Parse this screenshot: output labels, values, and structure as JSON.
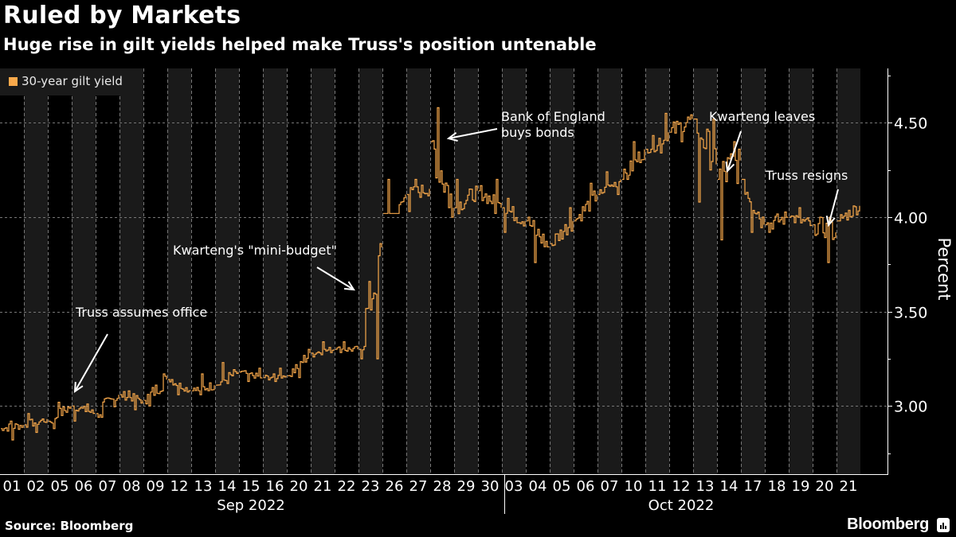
{
  "title": "Ruled by Markets",
  "subtitle": "Huge rise in gilt yields helped make Truss's position untenable",
  "source": "Source: Bloomberg",
  "brand": "Bloomberg",
  "colors": {
    "line": "#f9a94b",
    "background": "#000000",
    "band": "#1a1a1a",
    "text": "#ffffff"
  },
  "chart_data": {
    "type": "line",
    "title": "Ruled by Markets",
    "subtitle": "Huge rise in gilt yields helped make Truss's position untenable",
    "ylabel": "Percent",
    "xlabel": "",
    "ylim": [
      2.7,
      4.8
    ],
    "yticks": [
      3.0,
      3.5,
      4.0,
      4.5
    ],
    "ytick_labels": [
      "3.00",
      "3.50",
      "4.00",
      "4.50"
    ],
    "grid": true,
    "legend": {
      "placement": "top-left",
      "entries": [
        "30-year gilt yield"
      ]
    },
    "x_groups": [
      {
        "label": "Sep 2022",
        "days": [
          "01",
          "02",
          "05",
          "06",
          "07",
          "08",
          "09",
          "12",
          "13",
          "14",
          "15",
          "16",
          "20",
          "21",
          "22",
          "23",
          "26",
          "27",
          "28",
          "29",
          "30"
        ]
      },
      {
        "label": "Oct 2022",
        "days": [
          "03",
          "04",
          "05",
          "06",
          "07",
          "10",
          "11",
          "12",
          "13",
          "14",
          "17",
          "18",
          "19",
          "20",
          "21"
        ]
      }
    ],
    "series": [
      {
        "name": "30-year gilt yield",
        "daily_ohlc": [
          {
            "day": "Sep 01",
            "open": 2.88,
            "high": 2.92,
            "low": 2.82,
            "close": 2.9
          },
          {
            "day": "Sep 02",
            "open": 2.9,
            "high": 2.96,
            "low": 2.86,
            "close": 2.93
          },
          {
            "day": "Sep 05",
            "open": 2.92,
            "high": 3.02,
            "low": 2.88,
            "close": 3.0
          },
          {
            "day": "Sep 06",
            "open": 3.0,
            "high": 3.01,
            "low": 2.92,
            "close": 2.96
          },
          {
            "day": "Sep 07",
            "open": 2.96,
            "high": 3.14,
            "low": 2.94,
            "close": 3.06
          },
          {
            "day": "Sep 08",
            "open": 3.06,
            "high": 3.08,
            "low": 2.98,
            "close": 3.03
          },
          {
            "day": "Sep 09",
            "open": 3.03,
            "high": 3.17,
            "low": 3.0,
            "close": 3.14
          },
          {
            "day": "Sep 12",
            "open": 3.14,
            "high": 3.14,
            "low": 3.06,
            "close": 3.08
          },
          {
            "day": "Sep 13",
            "open": 3.08,
            "high": 3.17,
            "low": 3.06,
            "close": 3.11
          },
          {
            "day": "Sep 14",
            "open": 3.11,
            "high": 3.23,
            "low": 3.08,
            "close": 3.18
          },
          {
            "day": "Sep 15",
            "open": 3.18,
            "high": 3.2,
            "low": 3.13,
            "close": 3.15
          },
          {
            "day": "Sep 16",
            "open": 3.15,
            "high": 3.2,
            "low": 3.13,
            "close": 3.16
          },
          {
            "day": "Sep 20",
            "open": 3.16,
            "high": 3.3,
            "low": 3.15,
            "close": 3.28
          },
          {
            "day": "Sep 21",
            "open": 3.28,
            "high": 3.34,
            "low": 3.26,
            "close": 3.3
          },
          {
            "day": "Sep 22",
            "open": 3.3,
            "high": 3.34,
            "low": 3.26,
            "close": 3.3
          },
          {
            "day": "Sep 23",
            "open": 3.3,
            "high": 3.86,
            "low": 3.25,
            "close": 3.84
          },
          {
            "day": "Sep 26",
            "open": 3.84,
            "high": 4.2,
            "low": 4.02,
            "close": 4.12
          },
          {
            "day": "Sep 27",
            "open": 4.12,
            "high": 4.2,
            "low": 4.03,
            "close": 4.15
          },
          {
            "day": "Sep 28",
            "open": 4.4,
            "high": 4.58,
            "low": 4.0,
            "close": 4.05
          },
          {
            "day": "Sep 29",
            "open": 4.05,
            "high": 4.2,
            "low": 4.0,
            "close": 4.14
          },
          {
            "day": "Sep 30",
            "open": 4.14,
            "high": 4.2,
            "low": 4.02,
            "close": 4.05
          },
          {
            "day": "Oct 03",
            "open": 4.05,
            "high": 4.1,
            "low": 3.92,
            "close": 3.98
          },
          {
            "day": "Oct 04",
            "open": 3.98,
            "high": 4.0,
            "low": 3.76,
            "close": 3.84
          },
          {
            "day": "Oct 05",
            "open": 3.86,
            "high": 4.05,
            "low": 3.85,
            "close": 3.98
          },
          {
            "day": "Oct 06",
            "open": 3.98,
            "high": 4.18,
            "low": 3.98,
            "close": 4.12
          },
          {
            "day": "Oct 07",
            "open": 4.12,
            "high": 4.24,
            "low": 4.12,
            "close": 4.2
          },
          {
            "day": "Oct 10",
            "open": 4.2,
            "high": 4.4,
            "low": 4.2,
            "close": 4.36
          },
          {
            "day": "Oct 11",
            "open": 4.36,
            "high": 4.55,
            "low": 4.34,
            "close": 4.45
          },
          {
            "day": "Oct 12",
            "open": 4.45,
            "high": 4.62,
            "low": 4.4,
            "close": 4.52
          },
          {
            "day": "Oct 13",
            "open": 4.52,
            "high": 4.52,
            "low": 4.08,
            "close": 4.28
          },
          {
            "day": "Oct 14",
            "open": 4.2,
            "high": 4.4,
            "low": 3.88,
            "close": 4.3
          },
          {
            "day": "Oct 17",
            "open": 4.2,
            "high": 4.2,
            "low": 3.92,
            "close": 3.96
          },
          {
            "day": "Oct 18",
            "open": 3.96,
            "high": 4.1,
            "low": 3.92,
            "close": 4.0
          },
          {
            "day": "Oct 19",
            "open": 4.0,
            "high": 4.05,
            "low": 3.9,
            "close": 3.96
          },
          {
            "day": "Oct 20",
            "open": 3.96,
            "high": 4.0,
            "low": 3.76,
            "close": 3.92
          },
          {
            "day": "Oct 21",
            "open": 3.98,
            "high": 4.14,
            "low": 3.98,
            "close": 4.06
          }
        ]
      }
    ],
    "annotations": [
      {
        "text": "Truss assumes office",
        "target_day": "Sep 06",
        "target_value": 3.08
      },
      {
        "text": "Kwarteng's \"mini-budget\"",
        "target_day": "Sep 23",
        "target_value": 3.62
      },
      {
        "text": "Bank of England buys bonds",
        "lines": [
          "Bank of England",
          "buys bonds"
        ],
        "target_day": "Sep 28",
        "target_value": 4.42
      },
      {
        "text": "Kwarteng leaves",
        "target_day": "Oct 14",
        "target_value": 4.24
      },
      {
        "text": "Truss resigns",
        "target_day": "Oct 20",
        "target_value": 3.94
      }
    ]
  }
}
